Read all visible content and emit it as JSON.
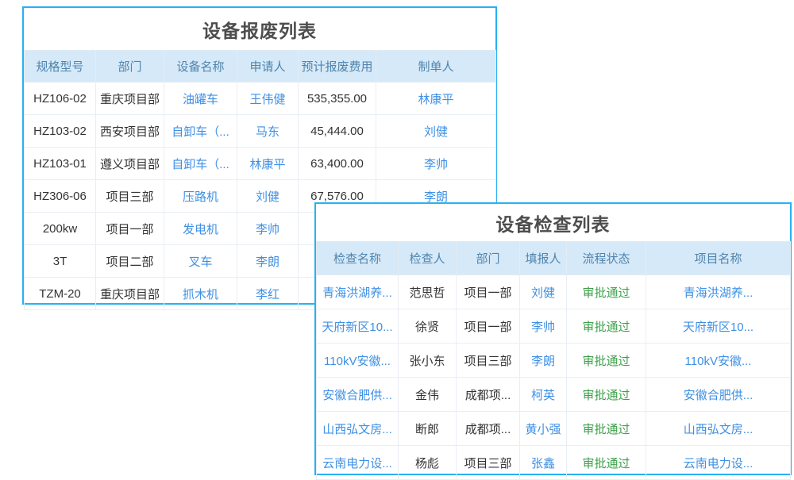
{
  "colors": {
    "card_border": "#27b1f2",
    "header_bg": "#d6e9f8",
    "header_text": "#4e84ad",
    "link_text": "#3e90e5",
    "status_approved_text": "#3da04a",
    "title_text": "#4d4d4d"
  },
  "tables": [
    {
      "title": "设备报废列表",
      "columns": [
        "规格型号",
        "部门",
        "设备名称",
        "申请人",
        "预计报废费用",
        "制单人"
      ],
      "col_styles": [
        "text",
        "text",
        "link",
        "link",
        "text",
        "link"
      ],
      "rows": [
        [
          "HZ106-02",
          "重庆项目部",
          "油罐车",
          "王伟健",
          "535,355.00",
          "林康平"
        ],
        [
          "HZ103-02",
          "西安项目部",
          "自卸车（...",
          "马东",
          "45,444.00",
          "刘健"
        ],
        [
          "HZ103-01",
          "遵义项目部",
          "自卸车（...",
          "林康平",
          "63,400.00",
          "李帅"
        ],
        [
          "HZ306-06",
          "项目三部",
          "压路机",
          "刘健",
          "67,576.00",
          "李朗"
        ],
        [
          "200kw",
          "项目一部",
          "发电机",
          "李帅",
          "",
          ""
        ],
        [
          "3T",
          "项目二部",
          "叉车",
          "李朗",
          "",
          ""
        ],
        [
          "TZM-20",
          "重庆项目部",
          "抓木机",
          "李红",
          "",
          ""
        ]
      ]
    },
    {
      "title": "设备检查列表",
      "columns": [
        "检查名称",
        "检查人",
        "部门",
        "填报人",
        "流程状态",
        "项目名称"
      ],
      "col_styles": [
        "link",
        "text",
        "text",
        "link",
        "status",
        "link"
      ],
      "rows": [
        [
          "青海洪湖养...",
          "范思哲",
          "项目一部",
          "刘健",
          "审批通过",
          "青海洪湖养..."
        ],
        [
          "天府新区10...",
          "徐贤",
          "项目一部",
          "李帅",
          "审批通过",
          "天府新区10..."
        ],
        [
          "110kV安徽...",
          "张小东",
          "项目三部",
          "李朗",
          "审批通过",
          "110kV安徽..."
        ],
        [
          "安徽合肥供...",
          "金伟",
          "成都项...",
          "柯英",
          "审批通过",
          "安徽合肥供..."
        ],
        [
          "山西弘文房...",
          "断郎",
          "成都项...",
          "黄小强",
          "审批通过",
          "山西弘文房..."
        ],
        [
          "云南电力设...",
          "杨彪",
          "项目三部",
          "张鑫",
          "审批通过",
          "云南电力设..."
        ]
      ]
    }
  ]
}
